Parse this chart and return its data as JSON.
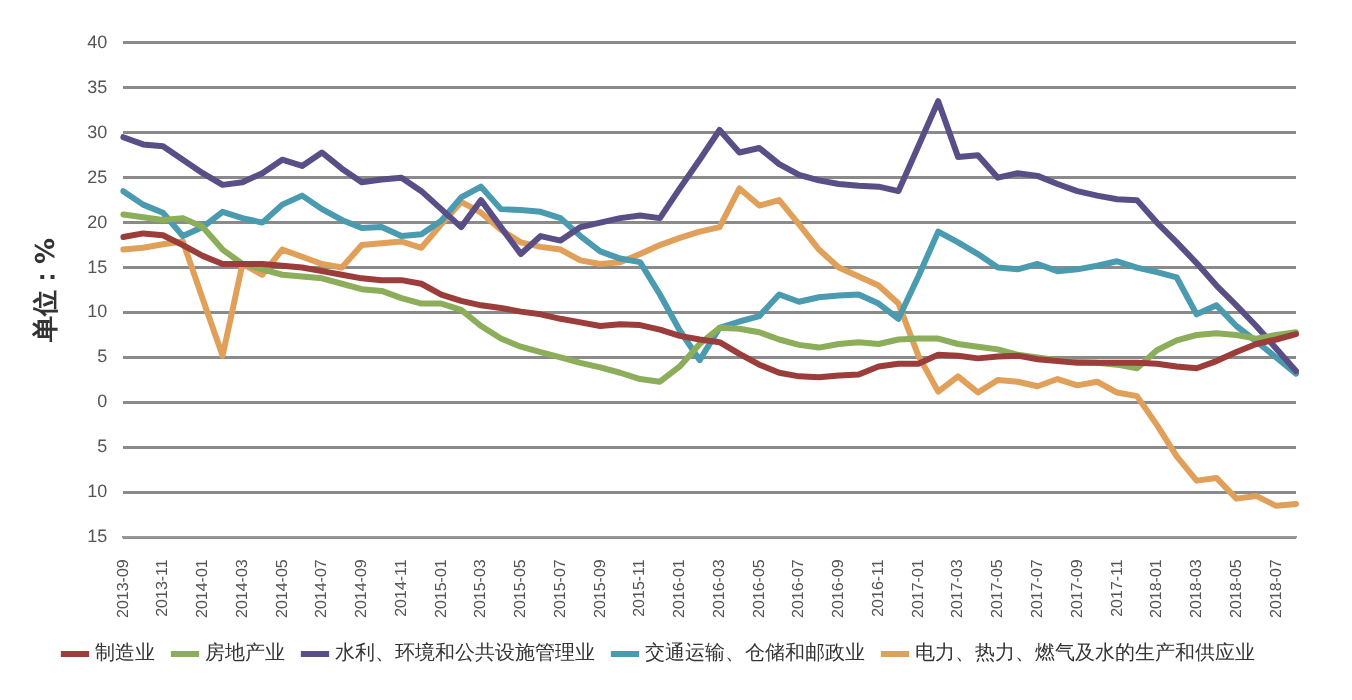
{
  "chart_data": {
    "type": "line",
    "ylabel": "单位：%",
    "categories": [
      "2013-09",
      null,
      "2013-11",
      null,
      "2014-01",
      null,
      "2014-03",
      null,
      "2014-05",
      null,
      "2014-07",
      null,
      "2014-09",
      null,
      "2014-11",
      null,
      "2015-01",
      null,
      "2015-03",
      null,
      "2015-05",
      null,
      "2015-07",
      null,
      "2015-09",
      null,
      "2015-11",
      null,
      "2016-01",
      null,
      "2016-03",
      null,
      "2016-05",
      null,
      "2016-07",
      null,
      "2016-09",
      null,
      "2016-11",
      null,
      "2017-01",
      null,
      "2017-03",
      null,
      "2017-05",
      null,
      "2017-07",
      null,
      "2017-09",
      null,
      "2017-11",
      null,
      "2018-01",
      null,
      "2018-03",
      null,
      "2018-05",
      null,
      "2018-07",
      null
    ],
    "series": [
      {
        "name": "制造业",
        "color": "#9b3d3a",
        "values": [
          18.4,
          18.8,
          18.6,
          17.5,
          16.3,
          15.4,
          15.4,
          15.4,
          15.2,
          15,
          14.6,
          14.2,
          13.8,
          13.6,
          13.6,
          13.2,
          12,
          11.3,
          10.8,
          10.5,
          10.1,
          9.8,
          9.3,
          8.9,
          8.5,
          8.7,
          8.6,
          8.1,
          7.4,
          7,
          6.7,
          5.4,
          4.2,
          3.3,
          2.9,
          2.8,
          3,
          3.1,
          4,
          4.3,
          4.3,
          5.3,
          5.2,
          4.9,
          5.1,
          5.2,
          4.8,
          4.6,
          4.4,
          4.4,
          4.4,
          4.4,
          4.3,
          4,
          3.8,
          4.6,
          5.6,
          6.5,
          7,
          7.6
        ]
      },
      {
        "name": "房地产业",
        "color": "#8cad5a",
        "values": [
          20.9,
          20.6,
          20.3,
          20.5,
          19.5,
          17,
          15.4,
          14.8,
          14.2,
          14,
          13.8,
          13.2,
          12.6,
          12.4,
          11.6,
          11,
          11,
          10.3,
          8.5,
          7.1,
          6.2,
          5.6,
          5,
          4.4,
          3.9,
          3.3,
          2.6,
          2.3,
          4,
          6.5,
          8.3,
          8.2,
          7.8,
          7,
          6.4,
          6.1,
          6.5,
          6.7,
          6.5,
          7,
          7.1,
          7.1,
          6.5,
          6.2,
          5.9,
          5.3,
          5,
          4.7,
          4.5,
          4.4,
          4.2,
          3.8,
          5.8,
          6.9,
          7.5,
          7.7,
          7.5,
          7.1,
          7.5,
          7.8
        ]
      },
      {
        "name": "水利、环境和公共设施管理业",
        "color": "#5a4e86",
        "values": [
          29.5,
          28.7,
          28.5,
          27,
          25.5,
          24.2,
          24.5,
          25.5,
          27,
          26.3,
          27.8,
          26,
          24.5,
          24.8,
          25,
          23.5,
          21.5,
          19.5,
          22.5,
          19.5,
          16.5,
          18.5,
          18,
          19.5,
          20,
          20.5,
          20.8,
          20.5,
          23.8,
          27,
          30.3,
          27.8,
          28.3,
          26.5,
          25.3,
          24.7,
          24.3,
          24.1,
          24,
          23.5,
          28.5,
          33.5,
          27.3,
          27.5,
          25,
          25.5,
          25.2,
          24.3,
          23.5,
          23,
          22.6,
          22.5,
          20,
          17.8,
          15.5,
          13,
          10.8,
          8.5,
          6,
          3.5
        ]
      },
      {
        "name": "交通运输、仓储和邮政业",
        "color": "#4a9bb0",
        "values": [
          23.5,
          22,
          21.1,
          18.5,
          19.5,
          21.2,
          20.5,
          20,
          22,
          23,
          21.5,
          20.3,
          19.4,
          19.5,
          18.5,
          18.7,
          20.2,
          22.8,
          24,
          21.5,
          21.4,
          21.2,
          20.5,
          18.5,
          16.8,
          16,
          15.6,
          12,
          8,
          4.7,
          8.3,
          9,
          9.6,
          12,
          11.2,
          11.7,
          11.9,
          12,
          11,
          9.3,
          14,
          19,
          17.8,
          16.5,
          15,
          14.8,
          15.4,
          14.6,
          14.8,
          15.2,
          15.7,
          15,
          14.5,
          13.9,
          9.8,
          10.8,
          8.5,
          6.8,
          5,
          3.2
        ]
      },
      {
        "name": "电力、热力、燃气及水的生产和供应业",
        "color": "#e0a05a",
        "values": [
          17,
          17.2,
          17.6,
          17.9,
          11.5,
          5.2,
          15.4,
          14.2,
          17,
          16.2,
          15.4,
          15,
          17.5,
          17.7,
          17.9,
          17.2,
          19.8,
          22.3,
          21.1,
          19.2,
          17.8,
          17.3,
          17,
          15.8,
          15.4,
          15.6,
          16.5,
          17.5,
          18.3,
          19,
          19.5,
          23.8,
          21.9,
          22.5,
          19.8,
          17,
          15,
          14,
          13,
          11,
          5.2,
          1.2,
          2.9,
          1.1,
          2.5,
          2.3,
          1.8,
          2.6,
          1.9,
          2.3,
          1.1,
          0.7,
          -2.5,
          -6,
          -8.7,
          -8.4,
          -10.7,
          -10.4,
          -11.5,
          -11.3
        ]
      }
    ],
    "ylim": [
      -15,
      40
    ],
    "yticks": [
      {
        "value": -15,
        "label": "15"
      },
      {
        "value": -10,
        "label": "10"
      },
      {
        "value": -5,
        "label": "5"
      },
      0,
      5,
      10,
      15,
      20,
      25,
      30,
      35,
      40
    ],
    "grid": "y",
    "legend": "bottom",
    "marker": "none",
    "line_style": "solid"
  }
}
